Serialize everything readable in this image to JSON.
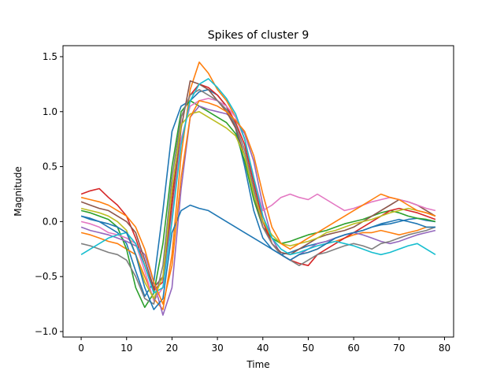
{
  "chart_data": {
    "type": "line",
    "title": "Spikes of cluster 9",
    "xlabel": "Time",
    "ylabel": "Magnitude",
    "xlim": [
      -4,
      82
    ],
    "ylim": [
      -1.05,
      1.6
    ],
    "xticks": [
      "0",
      "10",
      "20",
      "30",
      "40",
      "50",
      "60",
      "70",
      "80"
    ],
    "yticks": [
      "−1.0",
      "−0.5",
      "0.0",
      "0.5",
      "1.0",
      "1.5"
    ],
    "grid": false,
    "legend": "none",
    "palette": [
      "#1f77b4",
      "#ff7f0e",
      "#2ca02c",
      "#d62728",
      "#9467bd",
      "#8c564b",
      "#e377c2",
      "#7f7f7f",
      "#bcbd22",
      "#17becf"
    ],
    "series": [
      {
        "x": [
          0,
          2,
          4,
          6,
          8,
          10,
          12,
          14,
          16,
          18,
          20,
          22,
          24,
          26,
          28,
          30,
          32,
          34,
          36,
          38,
          40,
          42,
          44,
          46,
          48,
          50,
          52,
          54,
          56,
          58,
          60,
          62,
          64,
          66,
          68,
          70,
          72,
          74,
          76,
          78
        ],
        "y": [
          0.05,
          0.02,
          0.0,
          -0.05,
          -0.1,
          -0.2,
          -0.45,
          -0.68,
          -0.55,
          0.1,
          0.82,
          1.05,
          1.1,
          1.18,
          1.2,
          1.15,
          1.05,
          0.85,
          0.5,
          0.1,
          -0.15,
          -0.25,
          -0.3,
          -0.28,
          -0.25,
          -0.22,
          -0.2,
          -0.18,
          -0.15,
          -0.12,
          -0.1,
          -0.08,
          -0.05,
          -0.03,
          -0.02,
          0.0,
          0.02,
          0.03,
          0.01,
          0.0
        ]
      },
      {
        "x": [
          0,
          2,
          4,
          6,
          8,
          10,
          12,
          14,
          16,
          18,
          20,
          22,
          24,
          26,
          28,
          30,
          32,
          34,
          36,
          38,
          40,
          42,
          44,
          46,
          48,
          50,
          52,
          54,
          56,
          58,
          60,
          62,
          64,
          66,
          68,
          70,
          72,
          74,
          76,
          78
        ],
        "y": [
          -0.1,
          -0.12,
          -0.15,
          -0.18,
          -0.2,
          -0.25,
          -0.3,
          -0.5,
          -0.7,
          -0.8,
          -0.3,
          0.6,
          1.2,
          1.45,
          1.35,
          1.2,
          1.1,
          0.95,
          0.75,
          0.4,
          0.05,
          -0.2,
          -0.3,
          -0.35,
          -0.3,
          -0.28,
          -0.25,
          -0.2,
          -0.18,
          -0.15,
          -0.12,
          -0.1,
          -0.1,
          -0.08,
          -0.1,
          -0.12,
          -0.1,
          -0.08,
          -0.05,
          -0.05
        ]
      },
      {
        "x": [
          0,
          2,
          4,
          6,
          8,
          10,
          12,
          14,
          16,
          18,
          20,
          22,
          24,
          26,
          28,
          30,
          32,
          34,
          36,
          38,
          40,
          42,
          44,
          46,
          48,
          50,
          52,
          54,
          56,
          58,
          60,
          62,
          64,
          66,
          68,
          70,
          72,
          74,
          76,
          78
        ],
        "y": [
          0.1,
          0.08,
          0.05,
          0.02,
          -0.05,
          -0.25,
          -0.6,
          -0.78,
          -0.65,
          -0.2,
          0.5,
          1.0,
          1.1,
          1.05,
          1.0,
          0.95,
          0.9,
          0.8,
          0.55,
          0.2,
          -0.05,
          -0.15,
          -0.2,
          -0.18,
          -0.15,
          -0.12,
          -0.1,
          -0.08,
          -0.05,
          -0.02,
          0.0,
          0.02,
          0.05,
          0.08,
          0.1,
          0.08,
          0.05,
          0.03,
          0.02,
          0.0
        ]
      },
      {
        "x": [
          0,
          2,
          4,
          6,
          8,
          10,
          12,
          14,
          16,
          18,
          20,
          22,
          24,
          26,
          28,
          30,
          32,
          34,
          36,
          38,
          40,
          42,
          44,
          46,
          48,
          50,
          52,
          54,
          56,
          58,
          60,
          62,
          64,
          66,
          68,
          70,
          72,
          74,
          76,
          78
        ],
        "y": [
          0.25,
          0.28,
          0.3,
          0.22,
          0.15,
          0.05,
          -0.15,
          -0.4,
          -0.62,
          -0.55,
          0.2,
          0.95,
          1.15,
          1.25,
          1.22,
          1.15,
          1.05,
          0.9,
          0.7,
          0.35,
          0.0,
          -0.2,
          -0.3,
          -0.35,
          -0.38,
          -0.4,
          -0.3,
          -0.25,
          -0.2,
          -0.15,
          -0.1,
          -0.05,
          0.0,
          0.05,
          0.1,
          0.12,
          0.1,
          0.08,
          0.05,
          0.02
        ]
      },
      {
        "x": [
          0,
          2,
          4,
          6,
          8,
          10,
          12,
          14,
          16,
          18,
          20,
          22,
          24,
          26,
          28,
          30,
          32,
          34,
          36,
          38,
          40,
          42,
          44,
          46,
          48,
          50,
          52,
          54,
          56,
          58,
          60,
          62,
          64,
          66,
          68,
          70,
          72,
          74,
          76,
          78
        ],
        "y": [
          -0.05,
          -0.08,
          -0.1,
          -0.12,
          -0.15,
          -0.18,
          -0.22,
          -0.3,
          -0.55,
          -0.85,
          -0.6,
          0.3,
          0.95,
          1.05,
          1.02,
          1.0,
          0.98,
          0.92,
          0.8,
          0.55,
          0.15,
          -0.15,
          -0.3,
          -0.35,
          -0.3,
          -0.25,
          -0.2,
          -0.18,
          -0.15,
          -0.12,
          -0.1,
          -0.12,
          -0.15,
          -0.18,
          -0.2,
          -0.18,
          -0.15,
          -0.12,
          -0.1,
          -0.08
        ]
      },
      {
        "x": [
          0,
          2,
          4,
          6,
          8,
          10,
          12,
          14,
          16,
          18,
          20,
          22,
          24,
          26,
          28,
          30,
          32,
          34,
          36,
          38,
          40,
          42,
          44,
          46,
          48,
          50,
          52,
          54,
          56,
          58,
          60,
          62,
          64,
          66,
          68,
          70,
          72,
          74,
          76,
          78
        ],
        "y": [
          0.18,
          0.15,
          0.12,
          0.1,
          0.05,
          0.0,
          -0.1,
          -0.35,
          -0.6,
          -0.5,
          0.1,
          0.85,
          1.28,
          1.25,
          1.2,
          1.1,
          1.0,
          0.85,
          0.6,
          0.25,
          -0.05,
          -0.2,
          -0.28,
          -0.3,
          -0.25,
          -0.2,
          -0.15,
          -0.12,
          -0.1,
          -0.08,
          -0.05,
          0.0,
          0.05,
          0.1,
          0.15,
          0.2,
          0.18,
          0.15,
          0.1,
          0.05
        ]
      },
      {
        "x": [
          0,
          2,
          4,
          6,
          8,
          10,
          12,
          14,
          16,
          18,
          20,
          22,
          24,
          26,
          28,
          30,
          32,
          34,
          36,
          38,
          40,
          42,
          44,
          46,
          48,
          50,
          52,
          54,
          56,
          58,
          60,
          62,
          64,
          66,
          68,
          70,
          72,
          74,
          76,
          78
        ],
        "y": [
          0.0,
          -0.02,
          -0.05,
          -0.1,
          -0.12,
          -0.15,
          -0.2,
          -0.45,
          -0.72,
          -0.6,
          0.05,
          0.75,
          1.05,
          1.1,
          1.12,
          1.1,
          1.05,
          0.95,
          0.75,
          0.4,
          0.1,
          0.15,
          0.22,
          0.25,
          0.22,
          0.2,
          0.25,
          0.2,
          0.15,
          0.1,
          0.12,
          0.15,
          0.18,
          0.2,
          0.22,
          0.2,
          0.18,
          0.15,
          0.12,
          0.1
        ]
      },
      {
        "x": [
          0,
          2,
          4,
          6,
          8,
          10,
          12,
          14,
          16,
          18,
          20,
          22,
          24,
          26,
          28,
          30,
          32,
          34,
          36,
          38,
          40,
          42,
          44,
          46,
          48,
          50,
          52,
          54,
          56,
          58,
          60,
          62,
          64,
          66,
          68,
          70,
          72,
          74,
          76,
          78
        ],
        "y": [
          -0.2,
          -0.22,
          -0.25,
          -0.28,
          -0.3,
          -0.35,
          -0.5,
          -0.7,
          -0.75,
          -0.4,
          0.4,
          0.95,
          1.15,
          1.2,
          1.15,
          1.1,
          1.02,
          0.88,
          0.65,
          0.3,
          -0.05,
          -0.2,
          -0.3,
          -0.35,
          -0.4,
          -0.35,
          -0.3,
          -0.28,
          -0.25,
          -0.22,
          -0.2,
          -0.22,
          -0.25,
          -0.2,
          -0.18,
          -0.15,
          -0.12,
          -0.1,
          -0.08,
          -0.05
        ]
      },
      {
        "x": [
          0,
          2,
          4,
          6,
          8,
          10,
          12,
          14,
          16,
          18,
          20,
          22,
          24,
          26,
          28,
          30,
          32,
          34,
          36,
          38,
          40,
          42,
          44,
          46,
          48,
          50,
          52,
          54,
          56,
          58,
          60,
          62,
          64,
          66,
          68,
          70,
          72,
          74,
          76,
          78
        ],
        "y": [
          0.12,
          0.1,
          0.08,
          0.05,
          0.0,
          -0.08,
          -0.3,
          -0.55,
          -0.7,
          -0.5,
          0.3,
          0.88,
          0.98,
          1.0,
          0.95,
          0.9,
          0.85,
          0.78,
          0.6,
          0.25,
          0.0,
          -0.12,
          -0.2,
          -0.22,
          -0.2,
          -0.18,
          -0.15,
          -0.1,
          -0.08,
          -0.05,
          -0.02,
          0.0,
          0.02,
          0.05,
          0.08,
          0.1,
          0.12,
          0.1,
          0.08,
          0.05
        ]
      },
      {
        "x": [
          0,
          2,
          4,
          6,
          8,
          10,
          12,
          14,
          16,
          18,
          20,
          22,
          24,
          26,
          28,
          30,
          32,
          34,
          36,
          38,
          40,
          42,
          44,
          46,
          48,
          50,
          52,
          54,
          56,
          58,
          60,
          62,
          64,
          66,
          68,
          70,
          72,
          74,
          76,
          78
        ],
        "y": [
          -0.3,
          -0.25,
          -0.2,
          -0.15,
          -0.12,
          -0.1,
          -0.2,
          -0.4,
          -0.65,
          -0.6,
          0.0,
          0.7,
          1.1,
          1.25,
          1.3,
          1.22,
          1.12,
          0.98,
          0.75,
          0.4,
          0.05,
          -0.15,
          -0.25,
          -0.3,
          -0.28,
          -0.25,
          -0.22,
          -0.2,
          -0.18,
          -0.2,
          -0.22,
          -0.25,
          -0.28,
          -0.3,
          -0.28,
          -0.25,
          -0.22,
          -0.2,
          -0.25,
          -0.3
        ]
      },
      {
        "x": [
          0,
          2,
          4,
          6,
          8,
          10,
          12,
          14,
          16,
          18,
          20,
          22,
          24,
          26,
          28,
          30,
          32,
          34,
          36,
          38,
          40,
          42,
          44,
          46,
          48,
          50,
          52,
          54,
          56,
          58,
          60,
          62,
          64,
          66,
          68,
          70,
          72,
          74,
          76,
          78
        ],
        "y": [
          0.05,
          0.03,
          0.0,
          -0.02,
          -0.05,
          -0.1,
          -0.3,
          -0.6,
          -0.8,
          -0.7,
          -0.1,
          0.1,
          0.15,
          0.12,
          0.1,
          0.05,
          0.0,
          -0.05,
          -0.1,
          -0.15,
          -0.2,
          -0.25,
          -0.3,
          -0.35,
          -0.3,
          -0.28,
          -0.25,
          -0.2,
          -0.15,
          -0.12,
          -0.1,
          -0.08,
          -0.05,
          -0.02,
          0.0,
          0.02,
          0.0,
          -0.02,
          -0.05,
          -0.05
        ]
      },
      {
        "x": [
          0,
          2,
          4,
          6,
          8,
          10,
          12,
          14,
          16,
          18,
          20,
          22,
          24,
          26,
          28,
          30,
          32,
          34,
          36,
          38,
          40,
          42,
          44,
          46,
          48,
          50,
          52,
          54,
          56,
          58,
          60,
          62,
          64,
          66,
          68,
          70,
          72,
          74,
          76,
          78
        ],
        "y": [
          0.22,
          0.2,
          0.18,
          0.15,
          0.1,
          0.05,
          -0.05,
          -0.25,
          -0.55,
          -0.75,
          -0.4,
          0.4,
          0.95,
          1.1,
          1.08,
          1.05,
          1.0,
          0.92,
          0.82,
          0.6,
          0.25,
          -0.05,
          -0.2,
          -0.25,
          -0.2,
          -0.15,
          -0.1,
          -0.05,
          0.0,
          0.05,
          0.1,
          0.15,
          0.2,
          0.25,
          0.22,
          0.2,
          0.15,
          0.1,
          0.08,
          0.05
        ]
      }
    ]
  }
}
